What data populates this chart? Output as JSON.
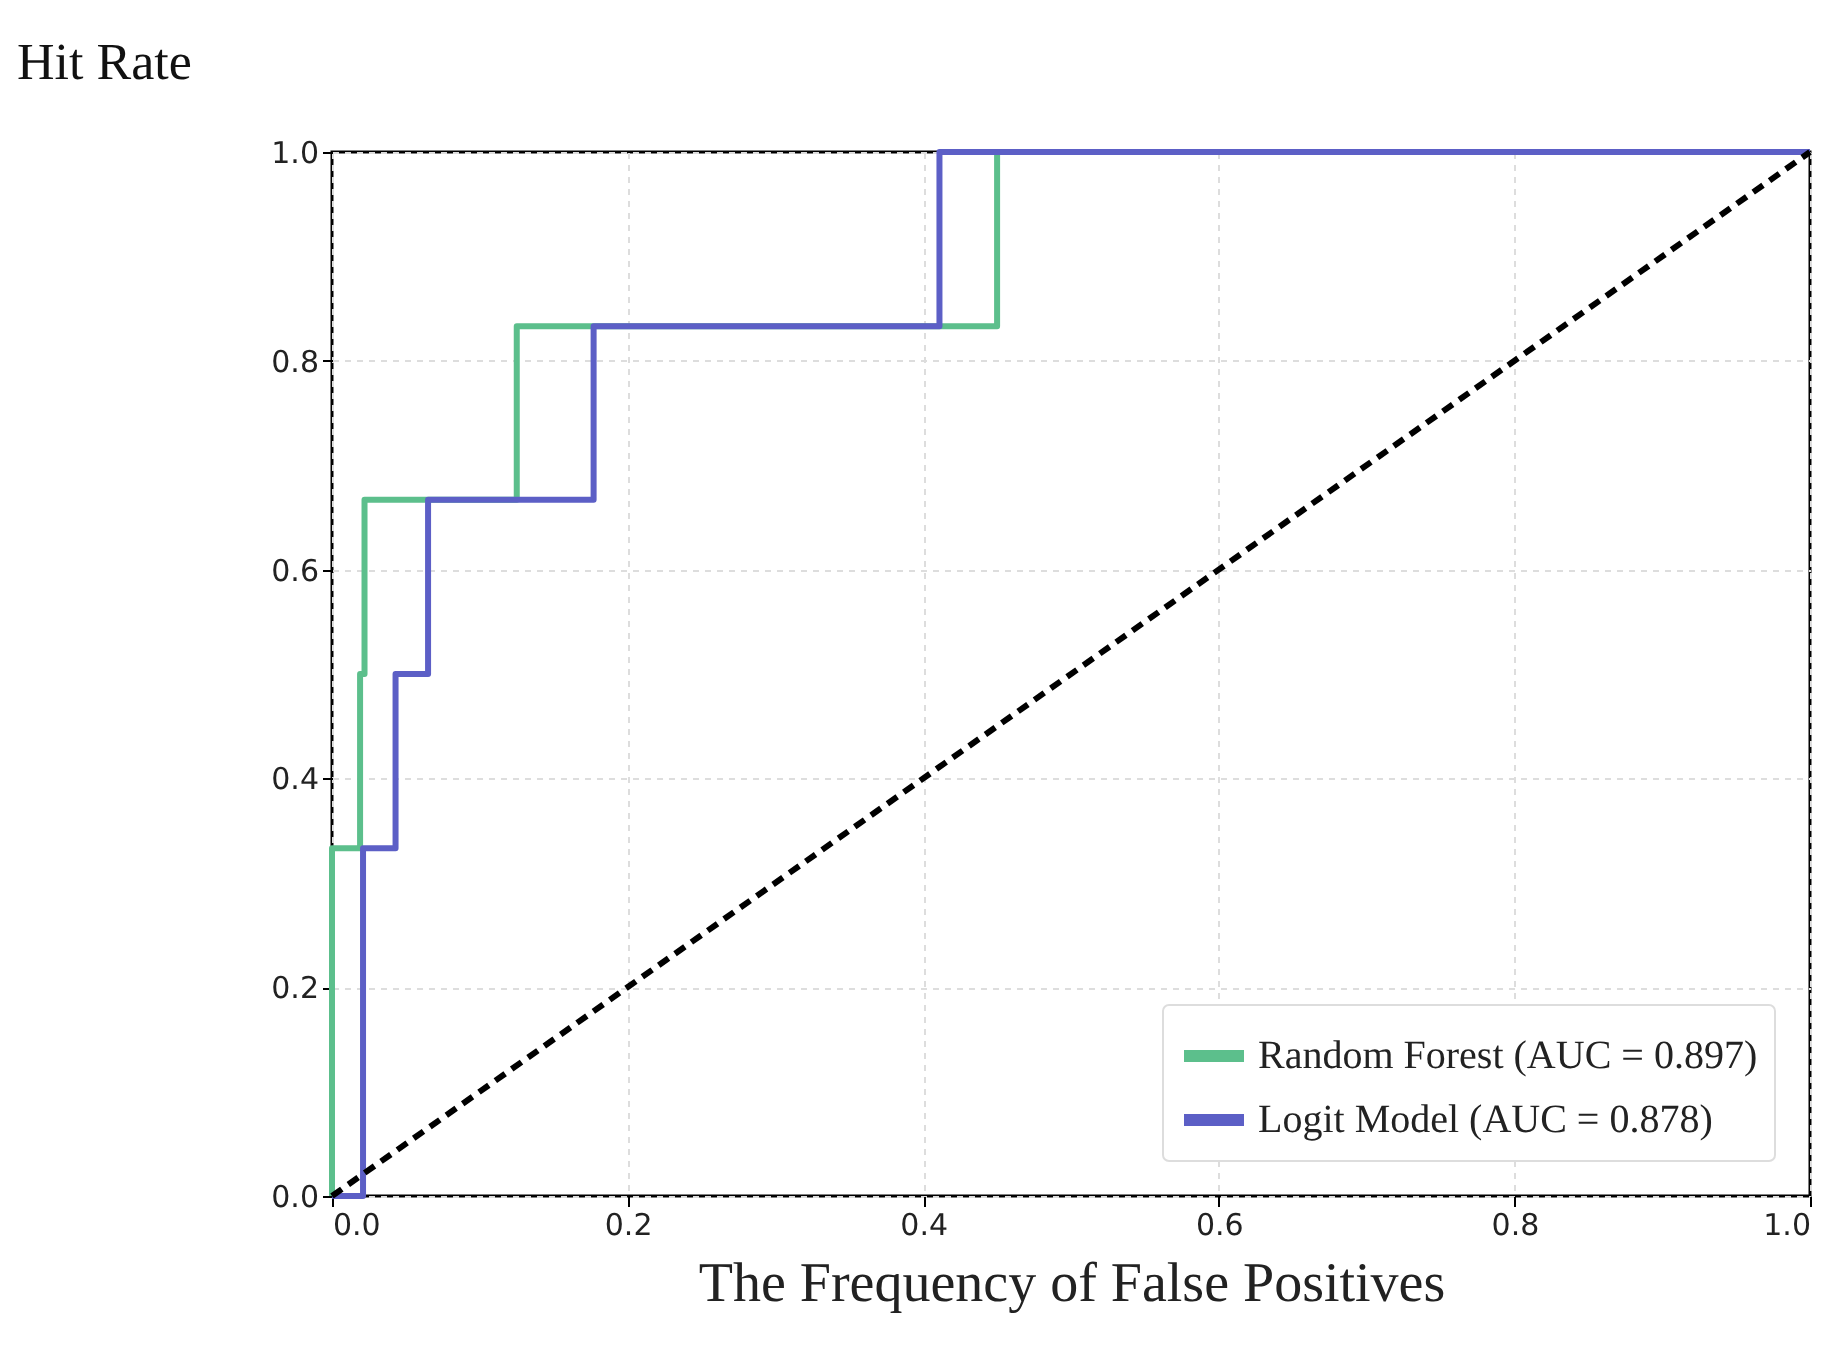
{
  "chart_data": {
    "type": "line",
    "xlabel": "The Frequency of False Positives",
    "ylabel": "Hit Rate",
    "xlim": [
      0,
      1
    ],
    "ylim": [
      0,
      1
    ],
    "xticks": [
      {
        "value": 0,
        "label": "0.0"
      },
      {
        "value": 0.2,
        "label": "0.2"
      },
      {
        "value": 0.4,
        "label": "0.4"
      },
      {
        "value": 0.6,
        "label": "0.6"
      },
      {
        "value": 0.8,
        "label": "0.8"
      },
      {
        "value": 1,
        "label": "1.0"
      }
    ],
    "yticks": [
      {
        "value": 0,
        "label": "0.0"
      },
      {
        "value": 0.2,
        "label": "0.2"
      },
      {
        "value": 0.4,
        "label": "0.4"
      },
      {
        "value": 0.6,
        "label": "0.6"
      },
      {
        "value": 0.8,
        "label": "0.8"
      },
      {
        "value": 1,
        "label": "1.0"
      }
    ],
    "grid": true,
    "legend": "bottom right",
    "marker": "none",
    "line_style": "solid",
    "series": [
      {
        "name": "Random Forest (AUC = 0.897)",
        "color": "#5cbf8c",
        "x": [
          0,
          0,
          0.019,
          0.019,
          0.022,
          0.022,
          0.125,
          0.125,
          0.45,
          0.45,
          1
        ],
        "values": [
          0,
          0.333,
          0.333,
          0.5,
          0.5,
          0.667,
          0.667,
          0.833,
          0.833,
          1,
          1
        ]
      },
      {
        "name": "Logit Model (AUC = 0.878)",
        "color": "#5c5fc6",
        "x": [
          0,
          0.021,
          0.021,
          0.043,
          0.043,
          0.065,
          0.065,
          0.177,
          0.177,
          0.411,
          0.411,
          1
        ],
        "values": [
          0,
          0,
          0.333,
          0.333,
          0.5,
          0.5,
          0.667,
          0.667,
          0.833,
          0.833,
          1,
          1
        ]
      },
      {
        "color": "#000000",
        "line_style": "dashed",
        "x": [
          0,
          1
        ],
        "values": [
          0,
          1
        ]
      }
    ]
  }
}
